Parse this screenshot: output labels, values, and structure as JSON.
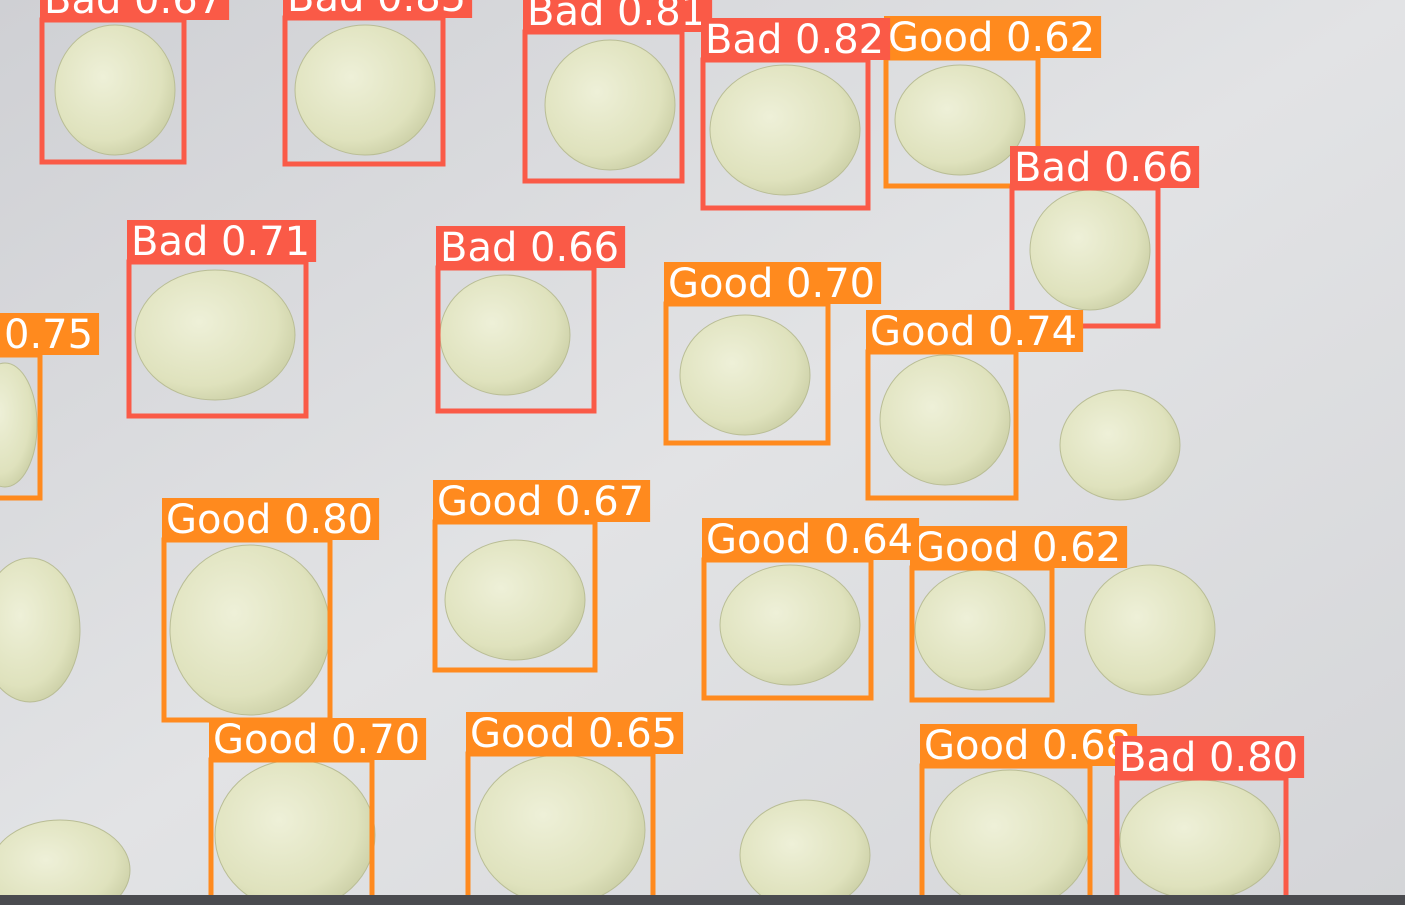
{
  "detections": [
    "Bad 0.67",
    "Bad 0.85",
    "Bad 0.81",
    "Good 0.62",
    "Bad 0.82",
    "Bad 0.66",
    "Bad 0.71",
    "Bad 0.66",
    "Good 0.70",
    "Good 0.74",
    "0.75",
    "Good 0.80",
    "Good 0.67",
    "Good 0.62",
    "Good 0.64",
    "Good 0.65",
    "Good 0.70",
    "Good 0.68",
    "Bad 0.80"
  ]
}
